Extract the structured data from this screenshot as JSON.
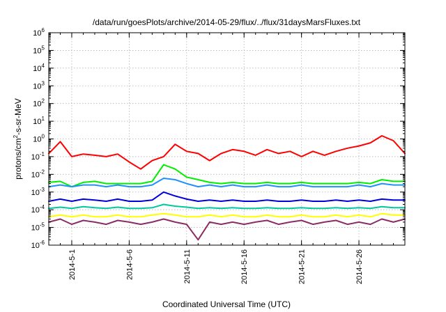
{
  "chart_data": {
    "type": "line",
    "title": "/data/run/goesPlots/archive/2014-05-29/flux/../flux/31daysMarsFluxes.txt",
    "xlabel": "Coordinated Universal Time (UTC)",
    "ylabel_prefix": "protons/cm",
    "ylabel_exponent": "2",
    "ylabel_suffix": "-s-sr-MeV",
    "y_scale": "log",
    "ylim": [
      1e-06,
      1000000.0
    ],
    "y_ticks": [
      {
        "value": 1e-06,
        "base": "10",
        "exp": "-6"
      },
      {
        "value": 1e-05,
        "base": "10",
        "exp": "-5"
      },
      {
        "value": 0.0001,
        "base": "10",
        "exp": "-4"
      },
      {
        "value": 0.001,
        "base": "10",
        "exp": "-3"
      },
      {
        "value": 0.01,
        "base": "10",
        "exp": "-2"
      },
      {
        "value": 0.1,
        "base": "10",
        "exp": "-1"
      },
      {
        "value": 1.0,
        "base": "10",
        "exp": "0"
      },
      {
        "value": 10.0,
        "base": "10",
        "exp": "1"
      },
      {
        "value": 100.0,
        "base": "10",
        "exp": "2"
      },
      {
        "value": 1000.0,
        "base": "10",
        "exp": "3"
      },
      {
        "value": 10000.0,
        "base": "10",
        "exp": "4"
      },
      {
        "value": 100000.0,
        "base": "10",
        "exp": "5"
      },
      {
        "value": 1000000.0,
        "base": "10",
        "exp": "6"
      }
    ],
    "xlim": [
      "2014-04-29",
      "2014-05-30"
    ],
    "x_ticks": [
      "2014-5-1",
      "2014-5-6",
      "2014-5-11",
      "2014-5-16",
      "2014-5-21",
      "2014-5-26"
    ],
    "grid": true,
    "series": [
      {
        "color": "#ff0000",
        "x": [
          "2014-04-29",
          "2014-04-30",
          "2014-05-01",
          "2014-05-02",
          "2014-05-03",
          "2014-05-04",
          "2014-05-05",
          "2014-05-06",
          "2014-05-07",
          "2014-05-08",
          "2014-05-09",
          "2014-05-10",
          "2014-05-11",
          "2014-05-12",
          "2014-05-13",
          "2014-05-14",
          "2014-05-15",
          "2014-05-16",
          "2014-05-17",
          "2014-05-18",
          "2014-05-19",
          "2014-05-20",
          "2014-05-21",
          "2014-05-22",
          "2014-05-23",
          "2014-05-24",
          "2014-05-25",
          "2014-05-26",
          "2014-05-27",
          "2014-05-28",
          "2014-05-29",
          "2014-05-30"
        ],
        "values": [
          0.15,
          0.7,
          0.1,
          0.14,
          0.12,
          0.1,
          0.14,
          0.05,
          0.02,
          0.06,
          0.1,
          0.5,
          0.2,
          0.15,
          0.06,
          0.15,
          0.25,
          0.2,
          0.12,
          0.25,
          0.15,
          0.2,
          0.1,
          0.2,
          0.12,
          0.2,
          0.3,
          0.4,
          0.6,
          1.5,
          0.8,
          0.15
        ]
      },
      {
        "color": "#00ee00",
        "x": [
          "2014-04-29",
          "2014-04-30",
          "2014-05-01",
          "2014-05-02",
          "2014-05-03",
          "2014-05-04",
          "2014-05-05",
          "2014-05-06",
          "2014-05-07",
          "2014-05-08",
          "2014-05-09",
          "2014-05-10",
          "2014-05-11",
          "2014-05-12",
          "2014-05-13",
          "2014-05-14",
          "2014-05-15",
          "2014-05-16",
          "2014-05-17",
          "2014-05-18",
          "2014-05-19",
          "2014-05-20",
          "2014-05-21",
          "2014-05-22",
          "2014-05-23",
          "2014-05-24",
          "2014-05-25",
          "2014-05-26",
          "2014-05-27",
          "2014-05-28",
          "2014-05-29",
          "2014-05-30"
        ],
        "values": [
          0.0035,
          0.004,
          0.002,
          0.0035,
          0.004,
          0.003,
          0.003,
          0.003,
          0.003,
          0.004,
          0.035,
          0.02,
          0.007,
          0.005,
          0.0035,
          0.003,
          0.0035,
          0.003,
          0.003,
          0.0035,
          0.003,
          0.003,
          0.0035,
          0.003,
          0.003,
          0.003,
          0.003,
          0.0035,
          0.003,
          0.005,
          0.004,
          0.004
        ]
      },
      {
        "color": "#1e90ff",
        "x": [
          "2014-04-29",
          "2014-04-30",
          "2014-05-01",
          "2014-05-02",
          "2014-05-03",
          "2014-05-04",
          "2014-05-05",
          "2014-05-06",
          "2014-05-07",
          "2014-05-08",
          "2014-05-09",
          "2014-05-10",
          "2014-05-11",
          "2014-05-12",
          "2014-05-13",
          "2014-05-14",
          "2014-05-15",
          "2014-05-16",
          "2014-05-17",
          "2014-05-18",
          "2014-05-19",
          "2014-05-20",
          "2014-05-21",
          "2014-05-22",
          "2014-05-23",
          "2014-05-24",
          "2014-05-25",
          "2014-05-26",
          "2014-05-27",
          "2014-05-28",
          "2014-05-29",
          "2014-05-30"
        ],
        "values": [
          0.002,
          0.0025,
          0.002,
          0.0025,
          0.0025,
          0.002,
          0.0025,
          0.002,
          0.002,
          0.0025,
          0.006,
          0.005,
          0.003,
          0.002,
          0.0025,
          0.002,
          0.0025,
          0.002,
          0.002,
          0.0025,
          0.002,
          0.002,
          0.0025,
          0.002,
          0.002,
          0.002,
          0.002,
          0.0025,
          0.002,
          0.003,
          0.0025,
          0.0025
        ]
      },
      {
        "color": "#0000dd",
        "x": [
          "2014-04-29",
          "2014-04-30",
          "2014-05-01",
          "2014-05-02",
          "2014-05-03",
          "2014-05-04",
          "2014-05-05",
          "2014-05-06",
          "2014-05-07",
          "2014-05-08",
          "2014-05-09",
          "2014-05-10",
          "2014-05-11",
          "2014-05-12",
          "2014-05-13",
          "2014-05-14",
          "2014-05-15",
          "2014-05-16",
          "2014-05-17",
          "2014-05-18",
          "2014-05-19",
          "2014-05-20",
          "2014-05-21",
          "2014-05-22",
          "2014-05-23",
          "2014-05-24",
          "2014-05-25",
          "2014-05-26",
          "2014-05-27",
          "2014-05-28",
          "2014-05-29",
          "2014-05-30"
        ],
        "values": [
          0.0003,
          0.0004,
          0.0003,
          0.0004,
          0.00035,
          0.0003,
          0.0004,
          0.0003,
          0.0003,
          0.00035,
          0.001,
          0.0006,
          0.0004,
          0.0003,
          0.00035,
          0.0003,
          0.00035,
          0.0003,
          0.0003,
          0.00035,
          0.0003,
          0.0003,
          0.00035,
          0.0003,
          0.0003,
          0.00035,
          0.0003,
          0.00035,
          0.0003,
          0.0004,
          0.00035,
          0.00035
        ]
      },
      {
        "color": "#00c8a0",
        "x": [
          "2014-04-29",
          "2014-04-30",
          "2014-05-01",
          "2014-05-02",
          "2014-05-03",
          "2014-05-04",
          "2014-05-05",
          "2014-05-06",
          "2014-05-07",
          "2014-05-08",
          "2014-05-09",
          "2014-05-10",
          "2014-05-11",
          "2014-05-12",
          "2014-05-13",
          "2014-05-14",
          "2014-05-15",
          "2014-05-16",
          "2014-05-17",
          "2014-05-18",
          "2014-05-19",
          "2014-05-20",
          "2014-05-21",
          "2014-05-22",
          "2014-05-23",
          "2014-05-24",
          "2014-05-25",
          "2014-05-26",
          "2014-05-27",
          "2014-05-28",
          "2014-05-29",
          "2014-05-30"
        ],
        "values": [
          0.00012,
          0.00014,
          0.00012,
          0.00015,
          0.00013,
          0.00012,
          0.00014,
          0.00012,
          0.00012,
          0.00013,
          0.0002,
          0.00016,
          0.00014,
          0.00012,
          0.00013,
          0.00012,
          0.00013,
          0.00012,
          0.00012,
          0.00013,
          0.00012,
          0.00012,
          0.00013,
          0.00012,
          0.00012,
          0.00013,
          0.00012,
          0.00013,
          0.00012,
          0.00015,
          0.00013,
          0.00013
        ]
      },
      {
        "color": "#ffff00",
        "x": [
          "2014-04-29",
          "2014-04-30",
          "2014-05-01",
          "2014-05-02",
          "2014-05-03",
          "2014-05-04",
          "2014-05-05",
          "2014-05-06",
          "2014-05-07",
          "2014-05-08",
          "2014-05-09",
          "2014-05-10",
          "2014-05-11",
          "2014-05-12",
          "2014-05-13",
          "2014-05-14",
          "2014-05-15",
          "2014-05-16",
          "2014-05-17",
          "2014-05-18",
          "2014-05-19",
          "2014-05-20",
          "2014-05-21",
          "2014-05-22",
          "2014-05-23",
          "2014-05-24",
          "2014-05-25",
          "2014-05-26",
          "2014-05-27",
          "2014-05-28",
          "2014-05-29",
          "2014-05-30"
        ],
        "values": [
          4e-05,
          5e-05,
          4e-05,
          5e-05,
          4e-05,
          4e-05,
          5e-05,
          4e-05,
          4e-05,
          5e-05,
          6e-05,
          5e-05,
          4e-05,
          4e-05,
          5e-05,
          4e-05,
          5e-05,
          4e-05,
          4e-05,
          5e-05,
          4e-05,
          4e-05,
          5e-05,
          4e-05,
          4e-05,
          5e-05,
          4e-05,
          5e-05,
          4e-05,
          6e-05,
          5e-05,
          5e-05
        ]
      },
      {
        "color": "#8b2c62",
        "x": [
          "2014-04-29",
          "2014-04-30",
          "2014-05-01",
          "2014-05-02",
          "2014-05-03",
          "2014-05-04",
          "2014-05-05",
          "2014-05-06",
          "2014-05-07",
          "2014-05-08",
          "2014-05-09",
          "2014-05-10",
          "2014-05-11",
          "2014-05-12",
          "2014-05-13",
          "2014-05-14",
          "2014-05-15",
          "2014-05-16",
          "2014-05-17",
          "2014-05-18",
          "2014-05-19",
          "2014-05-20",
          "2014-05-21",
          "2014-05-22",
          "2014-05-23",
          "2014-05-24",
          "2014-05-25",
          "2014-05-26",
          "2014-05-27",
          "2014-05-28",
          "2014-05-29",
          "2014-05-30"
        ],
        "values": [
          2e-05,
          3e-05,
          1.5e-05,
          2.5e-05,
          2e-05,
          1.5e-05,
          2.5e-05,
          2e-05,
          1.5e-05,
          2e-05,
          3e-05,
          2e-05,
          1.5e-05,
          2e-06,
          2e-05,
          1.5e-05,
          2e-05,
          1.5e-05,
          2e-05,
          2.5e-05,
          1.5e-05,
          2e-05,
          2.5e-05,
          1.5e-05,
          2e-05,
          2.5e-05,
          1.5e-05,
          2e-05,
          1.5e-05,
          3e-05,
          2e-05,
          3e-05
        ]
      }
    ]
  }
}
